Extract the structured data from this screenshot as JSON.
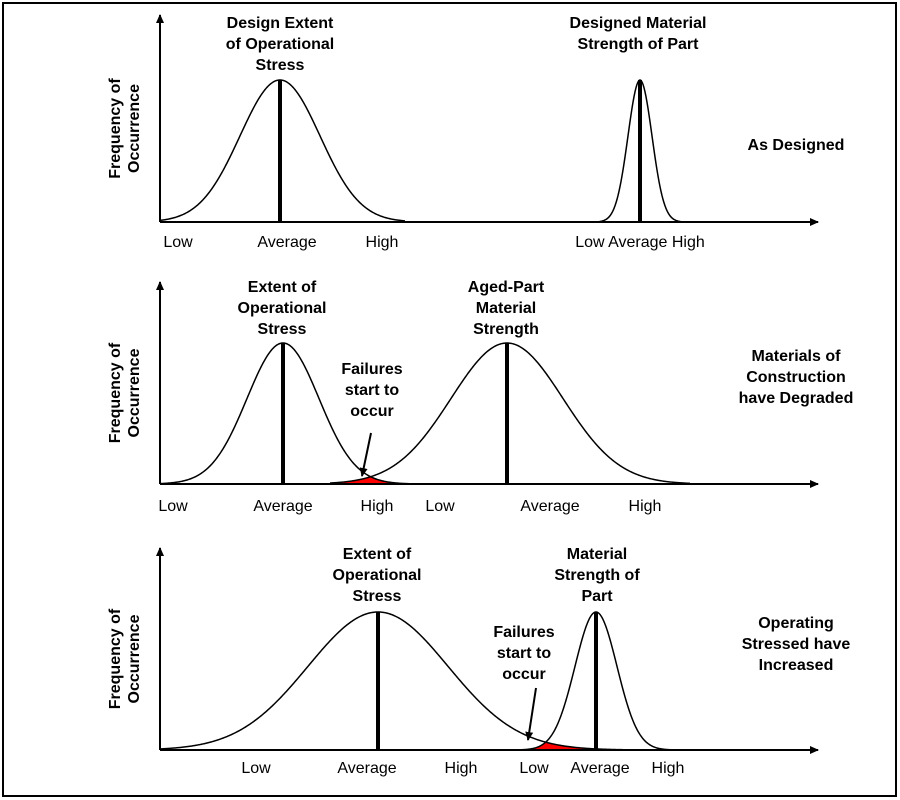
{
  "panels": [
    {
      "y_label": [
        "Frequency of",
        "Occurrence"
      ],
      "left_title": [
        "Design Extent",
        "of Operational",
        "Stress"
      ],
      "right_title": [
        "Designed Material",
        "Strength of Part"
      ],
      "state": [
        "As Designed"
      ],
      "ticks": [
        "Low",
        "Average",
        "High",
        "Low Average High"
      ]
    },
    {
      "y_label": [
        "Frequency of",
        "Occurrence"
      ],
      "left_title": [
        "Extent of",
        "Operational",
        "Stress"
      ],
      "right_title": [
        "Aged-Part",
        "Material",
        "Strength"
      ],
      "failure": [
        "Failures",
        "start to",
        "occur"
      ],
      "state": [
        "Materials of",
        "Construction",
        "have Degraded"
      ],
      "ticks": [
        "Low",
        "Average",
        "High",
        "Low",
        "Average",
        "High"
      ]
    },
    {
      "y_label": [
        "Frequency of",
        "Occurrence"
      ],
      "left_title": [
        "Extent of",
        "Operational",
        "Stress"
      ],
      "right_title": [
        "Material",
        "Strength of",
        "Part"
      ],
      "failure": [
        "Failures",
        "start to",
        "occur"
      ],
      "state": [
        "Operating",
        "Stressed have",
        "Increased"
      ],
      "ticks": [
        "Low",
        "Average",
        "High",
        "Low",
        "Average",
        "High"
      ]
    }
  ],
  "colors": {
    "overlap": "#ff0000",
    "line": "#000000"
  }
}
